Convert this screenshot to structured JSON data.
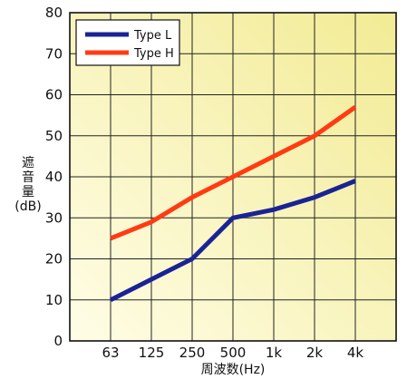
{
  "chart_data": {
    "type": "line",
    "categories": [
      "63",
      "125",
      "250",
      "500",
      "1k",
      "2k",
      "4k"
    ],
    "series": [
      {
        "name": "Type L",
        "color": "#1a2396",
        "values": [
          10,
          15,
          20,
          30,
          32,
          35,
          39
        ]
      },
      {
        "name": "Type H",
        "color": "#ff3b14",
        "values": [
          25,
          29,
          35,
          40,
          45,
          50,
          57
        ]
      }
    ],
    "y_ticks": [
      "0",
      "10",
      "20",
      "30",
      "40",
      "50",
      "60",
      "70",
      "80"
    ],
    "xlabel": "周波数(Hz)",
    "ylabel": {
      "lines": [
        "遮",
        "音",
        "量",
        "(dB)"
      ]
    },
    "ylim": [
      0,
      80
    ],
    "grid": true,
    "legend_position": "top-left",
    "background_gradient": [
      "#fffde6",
      "#f2eb94"
    ]
  }
}
